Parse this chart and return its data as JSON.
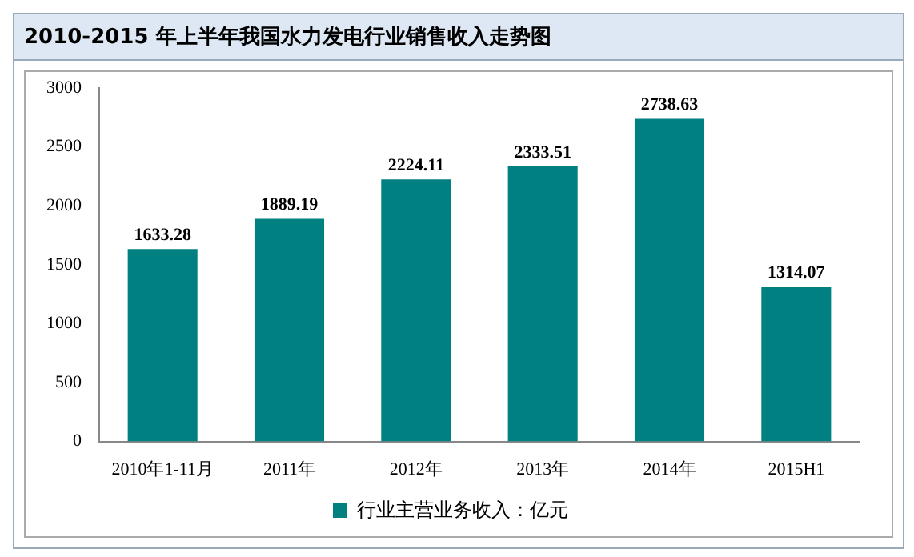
{
  "chart_data": {
    "type": "bar",
    "title": "2010-2015 年上半年我国水力发电行业销售收入走势图",
    "categories": [
      "2010年1-11月",
      "2011年",
      "2012年",
      "2013年",
      "2014年",
      "2015H1"
    ],
    "series": [
      {
        "name": "行业主营业务收入：亿元",
        "color": "#008080",
        "values": [
          1633.28,
          1889.19,
          2224.11,
          2333.51,
          2738.63,
          1314.07
        ]
      }
    ],
    "ylim": [
      0,
      3000
    ],
    "yticks": [
      0,
      500,
      1000,
      1500,
      2000,
      2500,
      3000
    ],
    "grid": false,
    "legend": "bottom",
    "data_labels": true
  }
}
